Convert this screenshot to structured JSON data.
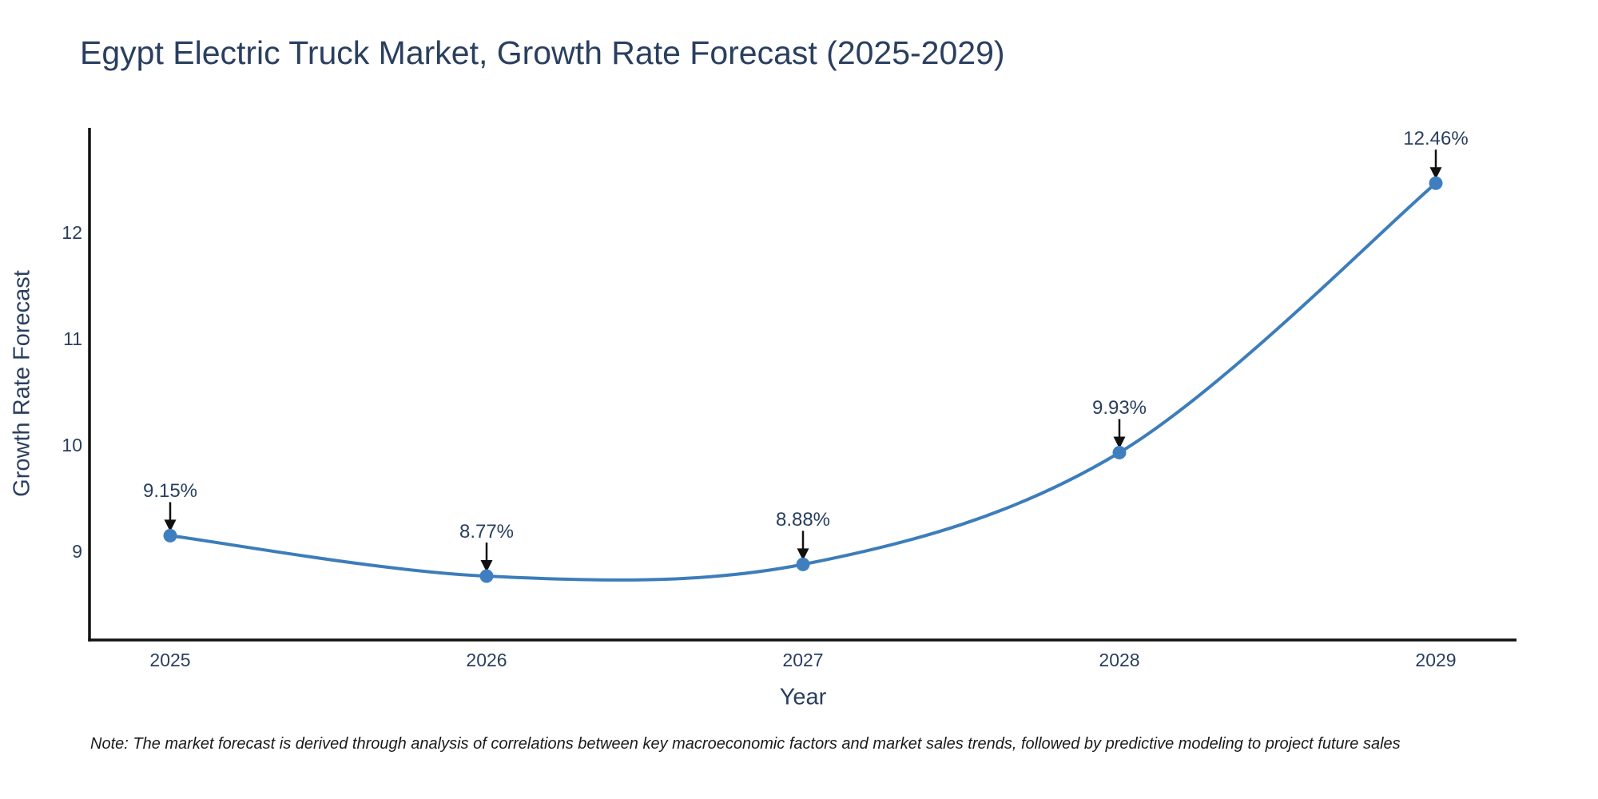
{
  "note": "Note: The market forecast is derived through analysis of correlations between key macroeconomic factors and market sales trends, followed by predictive modeling to project future sales",
  "chart_data": {
    "type": "line",
    "title": "Egypt Electric Truck Market, Growth Rate Forecast (2025-2029)",
    "xlabel": "Year",
    "ylabel": "Growth Rate Forecast",
    "categories": [
      "2025",
      "2026",
      "2027",
      "2028",
      "2029"
    ],
    "series": [
      {
        "name": "Growth Rate Forecast",
        "values": [
          9.15,
          8.77,
          8.88,
          9.93,
          12.46
        ],
        "point_labels": [
          "9.15%",
          "8.77%",
          "8.88%",
          "9.93%",
          "12.46%"
        ]
      }
    ],
    "yticks": [
      9,
      10,
      11,
      12
    ],
    "ylim": [
      8.17,
      12.98
    ],
    "line_shape": "spline",
    "grid": false,
    "legend_position": "none",
    "markers": true,
    "annotations_arrow": true,
    "colors": {
      "line": "#3c7dba",
      "marker": "#3f7fbf",
      "axis": "#111111",
      "arrow": "#111111",
      "text": "#2a3f5f"
    }
  }
}
